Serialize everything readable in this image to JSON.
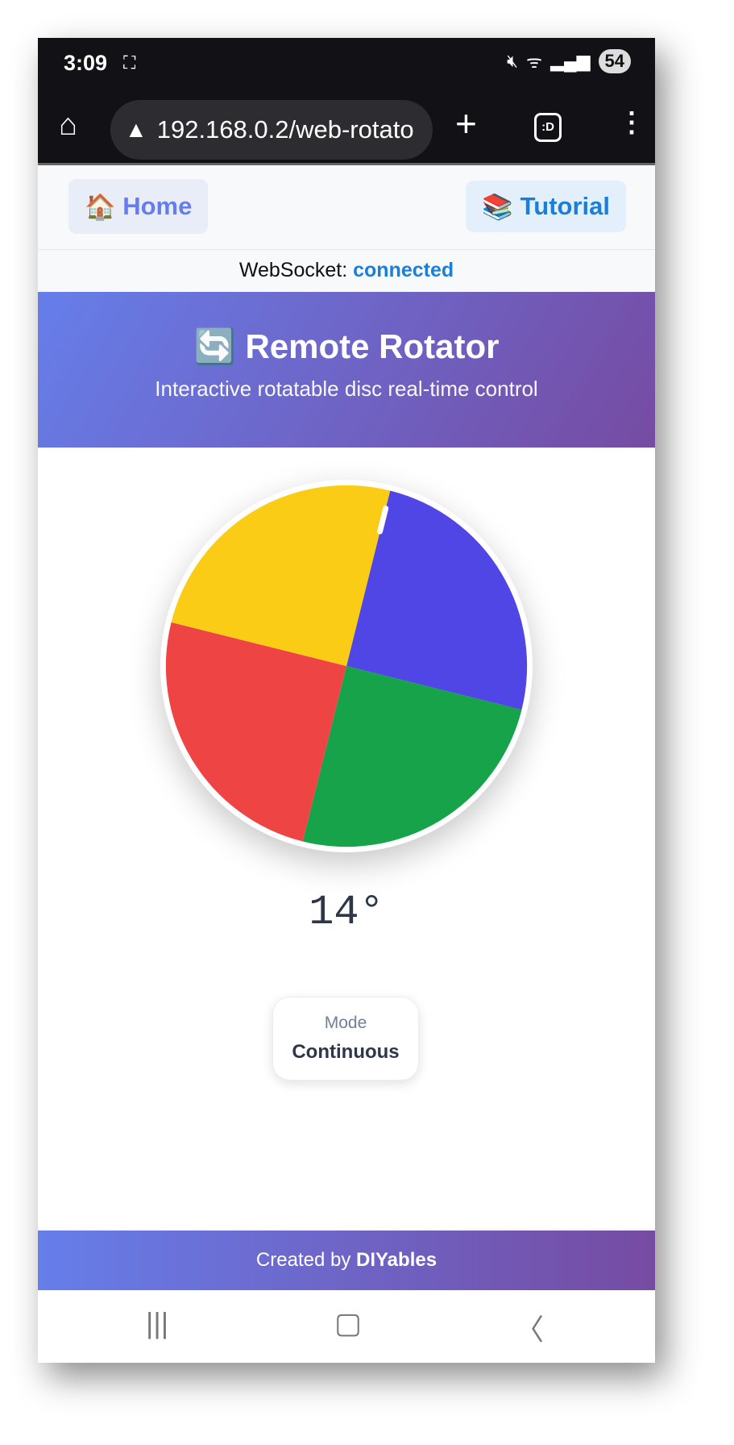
{
  "status_bar": {
    "time": "3:09",
    "battery": "54"
  },
  "browser": {
    "url": "192.168.0.2/web-rotato"
  },
  "nav": {
    "home_emoji": "🏠",
    "home": "Home",
    "tutorial_emoji": "📚",
    "tutorial": "Tutorial"
  },
  "websocket": {
    "label": "WebSocket:",
    "status": "connected"
  },
  "header": {
    "emoji": "🔄",
    "title": "Remote Rotator",
    "subtitle": "Interactive rotatable disc real-time control"
  },
  "disc": {
    "rotation_deg": 14,
    "segment_colors": [
      "#4f46e5",
      "#16a34a",
      "#ef4444",
      "#facc15"
    ]
  },
  "angle": {
    "value": "14°"
  },
  "mode": {
    "label": "Mode",
    "value": "Continuous"
  },
  "footer": {
    "prefix": "Created by ",
    "brand": "DIYables"
  },
  "colors": {
    "accent_start": "#667eea",
    "accent_end": "#764ba2",
    "link": "#1a7fd8"
  }
}
